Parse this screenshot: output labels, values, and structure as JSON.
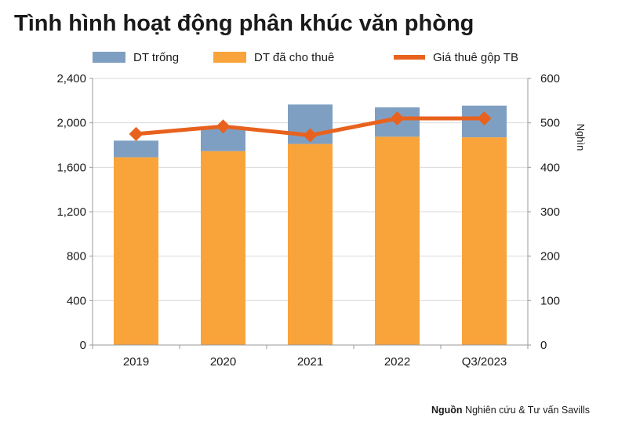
{
  "title": "Tình hình hoạt động phân khúc văn phòng",
  "source": {
    "label": "Nguồn",
    "text": "Nghiên cứu & Tư vấn Savills"
  },
  "legend": [
    {
      "key": "vacant",
      "label": "DT trống"
    },
    {
      "key": "leased",
      "label": "DT đã cho thuê"
    },
    {
      "key": "rent",
      "label": "Giá thuê gộp TB"
    }
  ],
  "colors": {
    "vacant": "#7f9fc2",
    "leased": "#f9a43a",
    "rent": "#e8621e",
    "grid": "#d9d9d9"
  },
  "chart_data": {
    "type": "bar",
    "stacked": true,
    "categories": [
      "2019",
      "2020",
      "2021",
      "2022",
      "Q3/2023"
    ],
    "series": [
      {
        "name": "DT đã cho thuê",
        "key": "leased",
        "axis": "left",
        "values": [
          1690,
          1745,
          1810,
          1875,
          1870
        ]
      },
      {
        "name": "DT trống",
        "key": "vacant",
        "axis": "left",
        "values": [
          150,
          205,
          355,
          265,
          285
        ]
      },
      {
        "name": "Giá thuê gộp TB",
        "key": "rent",
        "axis": "right",
        "type": "line",
        "values": [
          475,
          492,
          472,
          510,
          510
        ]
      }
    ],
    "ylim": [
      0,
      2400
    ],
    "yticks": [
      "0",
      "400",
      "800",
      "1,200",
      "1,600",
      "2,000",
      "2,400"
    ],
    "y2lim": [
      0,
      600
    ],
    "y2ticks": [
      "0",
      "100",
      "200",
      "300",
      "400",
      "500",
      "600"
    ],
    "y2label": "Nghìn",
    "grid": true,
    "legend_position": "top"
  }
}
